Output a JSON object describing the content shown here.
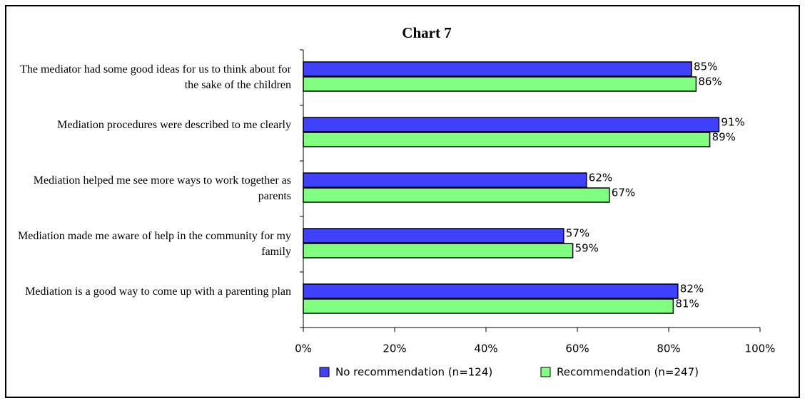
{
  "chart_data": {
    "type": "barh",
    "title": "Chart 7",
    "categories": [
      "The mediator had some good ideas for us to think about for the sake of the children",
      "Mediation procedures were described to me clearly",
      "Mediation helped me see more ways to work together as parents",
      "Mediation made me aware of help in the community for my family",
      "Mediation is a good way to come up with a parenting plan"
    ],
    "series": [
      {
        "name": "No recommendation (n=124)",
        "color": "#4040ff",
        "values": [
          85,
          91,
          62,
          57,
          82
        ],
        "value_labels": [
          "85%",
          "91%",
          "62%",
          "57%",
          "82%"
        ]
      },
      {
        "name": "Recommendation (n=247)",
        "color": "#80ff80",
        "values": [
          86,
          89,
          67,
          59,
          81
        ],
        "value_labels": [
          "86%",
          "89%",
          "67%",
          "59%",
          "81%"
        ]
      }
    ],
    "xlim": [
      0,
      100
    ],
    "xticks": [
      {
        "value": 0,
        "label": "0%"
      },
      {
        "value": 20,
        "label": "20%"
      },
      {
        "value": 40,
        "label": "40%"
      },
      {
        "value": 60,
        "label": "60%"
      },
      {
        "value": 80,
        "label": "80%"
      },
      {
        "value": 100,
        "label": "100%"
      }
    ],
    "legend": "bottom"
  }
}
